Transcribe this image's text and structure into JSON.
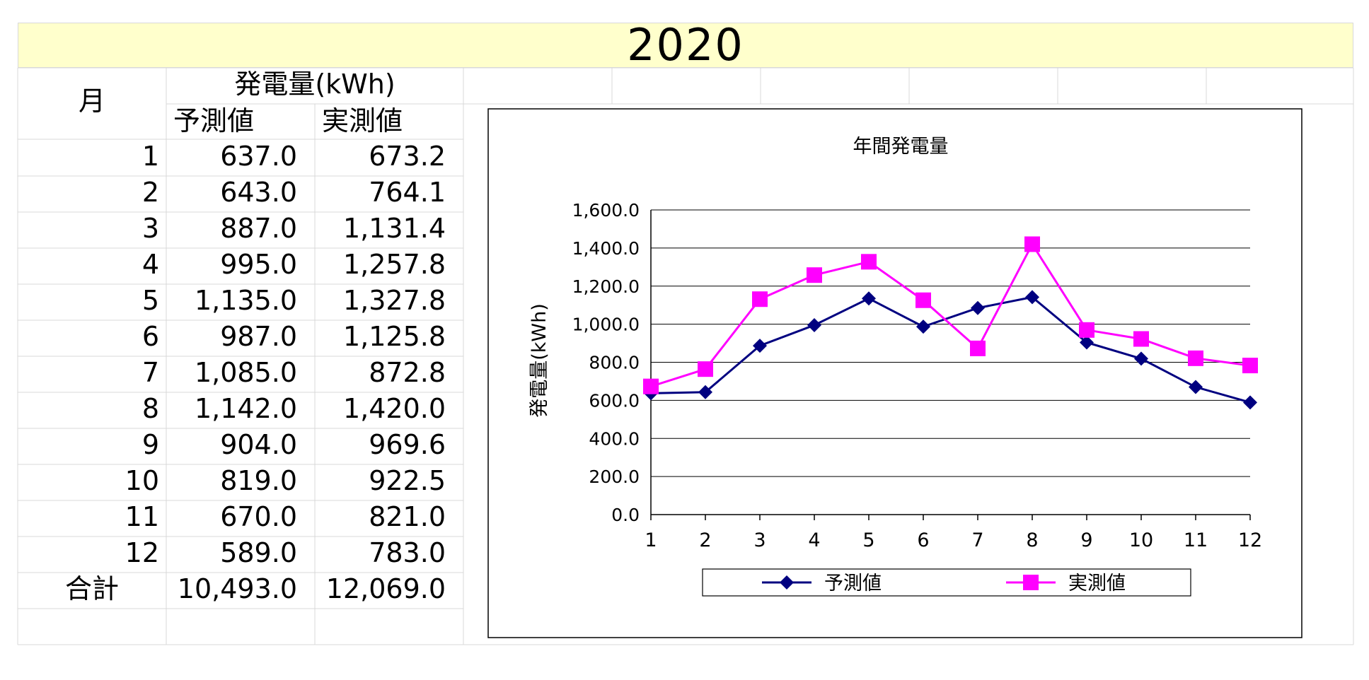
{
  "sheet": {
    "year_title": "2020",
    "header": {
      "month": "月",
      "generation": "発電量(kWh)",
      "forecast": "予測値",
      "actual": "実測値"
    },
    "rows": [
      {
        "month": "1",
        "forecast": "637.0",
        "actual": "673.2"
      },
      {
        "month": "2",
        "forecast": "643.0",
        "actual": "764.1"
      },
      {
        "month": "3",
        "forecast": "887.0",
        "actual": "1,131.4"
      },
      {
        "month": "4",
        "forecast": "995.0",
        "actual": "1,257.8"
      },
      {
        "month": "5",
        "forecast": "1,135.0",
        "actual": "1,327.8"
      },
      {
        "month": "6",
        "forecast": "987.0",
        "actual": "1,125.8"
      },
      {
        "month": "7",
        "forecast": "1,085.0",
        "actual": "872.8"
      },
      {
        "month": "8",
        "forecast": "1,142.0",
        "actual": "1,420.0"
      },
      {
        "month": "9",
        "forecast": "904.0",
        "actual": "969.6"
      },
      {
        "month": "10",
        "forecast": "819.0",
        "actual": "922.5"
      },
      {
        "month": "11",
        "forecast": "670.0",
        "actual": "821.0"
      },
      {
        "month": "12",
        "forecast": "589.0",
        "actual": "783.0"
      }
    ],
    "total": {
      "label": "合計",
      "forecast": "10,493.0",
      "actual": "12,069.0"
    }
  },
  "chart_data": {
    "type": "line",
    "title": "年間発電量",
    "xlabel": "",
    "ylabel": "発電量(kWh)",
    "categories": [
      "1",
      "2",
      "3",
      "4",
      "5",
      "6",
      "7",
      "8",
      "9",
      "10",
      "11",
      "12"
    ],
    "ylim": [
      0,
      1600
    ],
    "yticks": [
      0,
      200,
      400,
      600,
      800,
      1000,
      1200,
      1400,
      1600
    ],
    "ytick_labels": [
      "0.0",
      "200.0",
      "400.0",
      "600.0",
      "800.0",
      "1,000.0",
      "1,200.0",
      "1,400.0",
      "1,600.0"
    ],
    "grid": true,
    "legend_position": "bottom",
    "series": [
      {
        "name": "予測値",
        "color": "#000080",
        "marker": "diamond",
        "values": [
          637.0,
          643.0,
          887.0,
          995.0,
          1135.0,
          987.0,
          1085.0,
          1142.0,
          904.0,
          819.0,
          670.0,
          589.0
        ]
      },
      {
        "name": "実測値",
        "color": "#ff00ff",
        "marker": "square",
        "values": [
          673.2,
          764.1,
          1131.4,
          1257.8,
          1327.8,
          1125.8,
          872.8,
          1420.0,
          969.6,
          922.5,
          821.0,
          783.0
        ]
      }
    ]
  }
}
